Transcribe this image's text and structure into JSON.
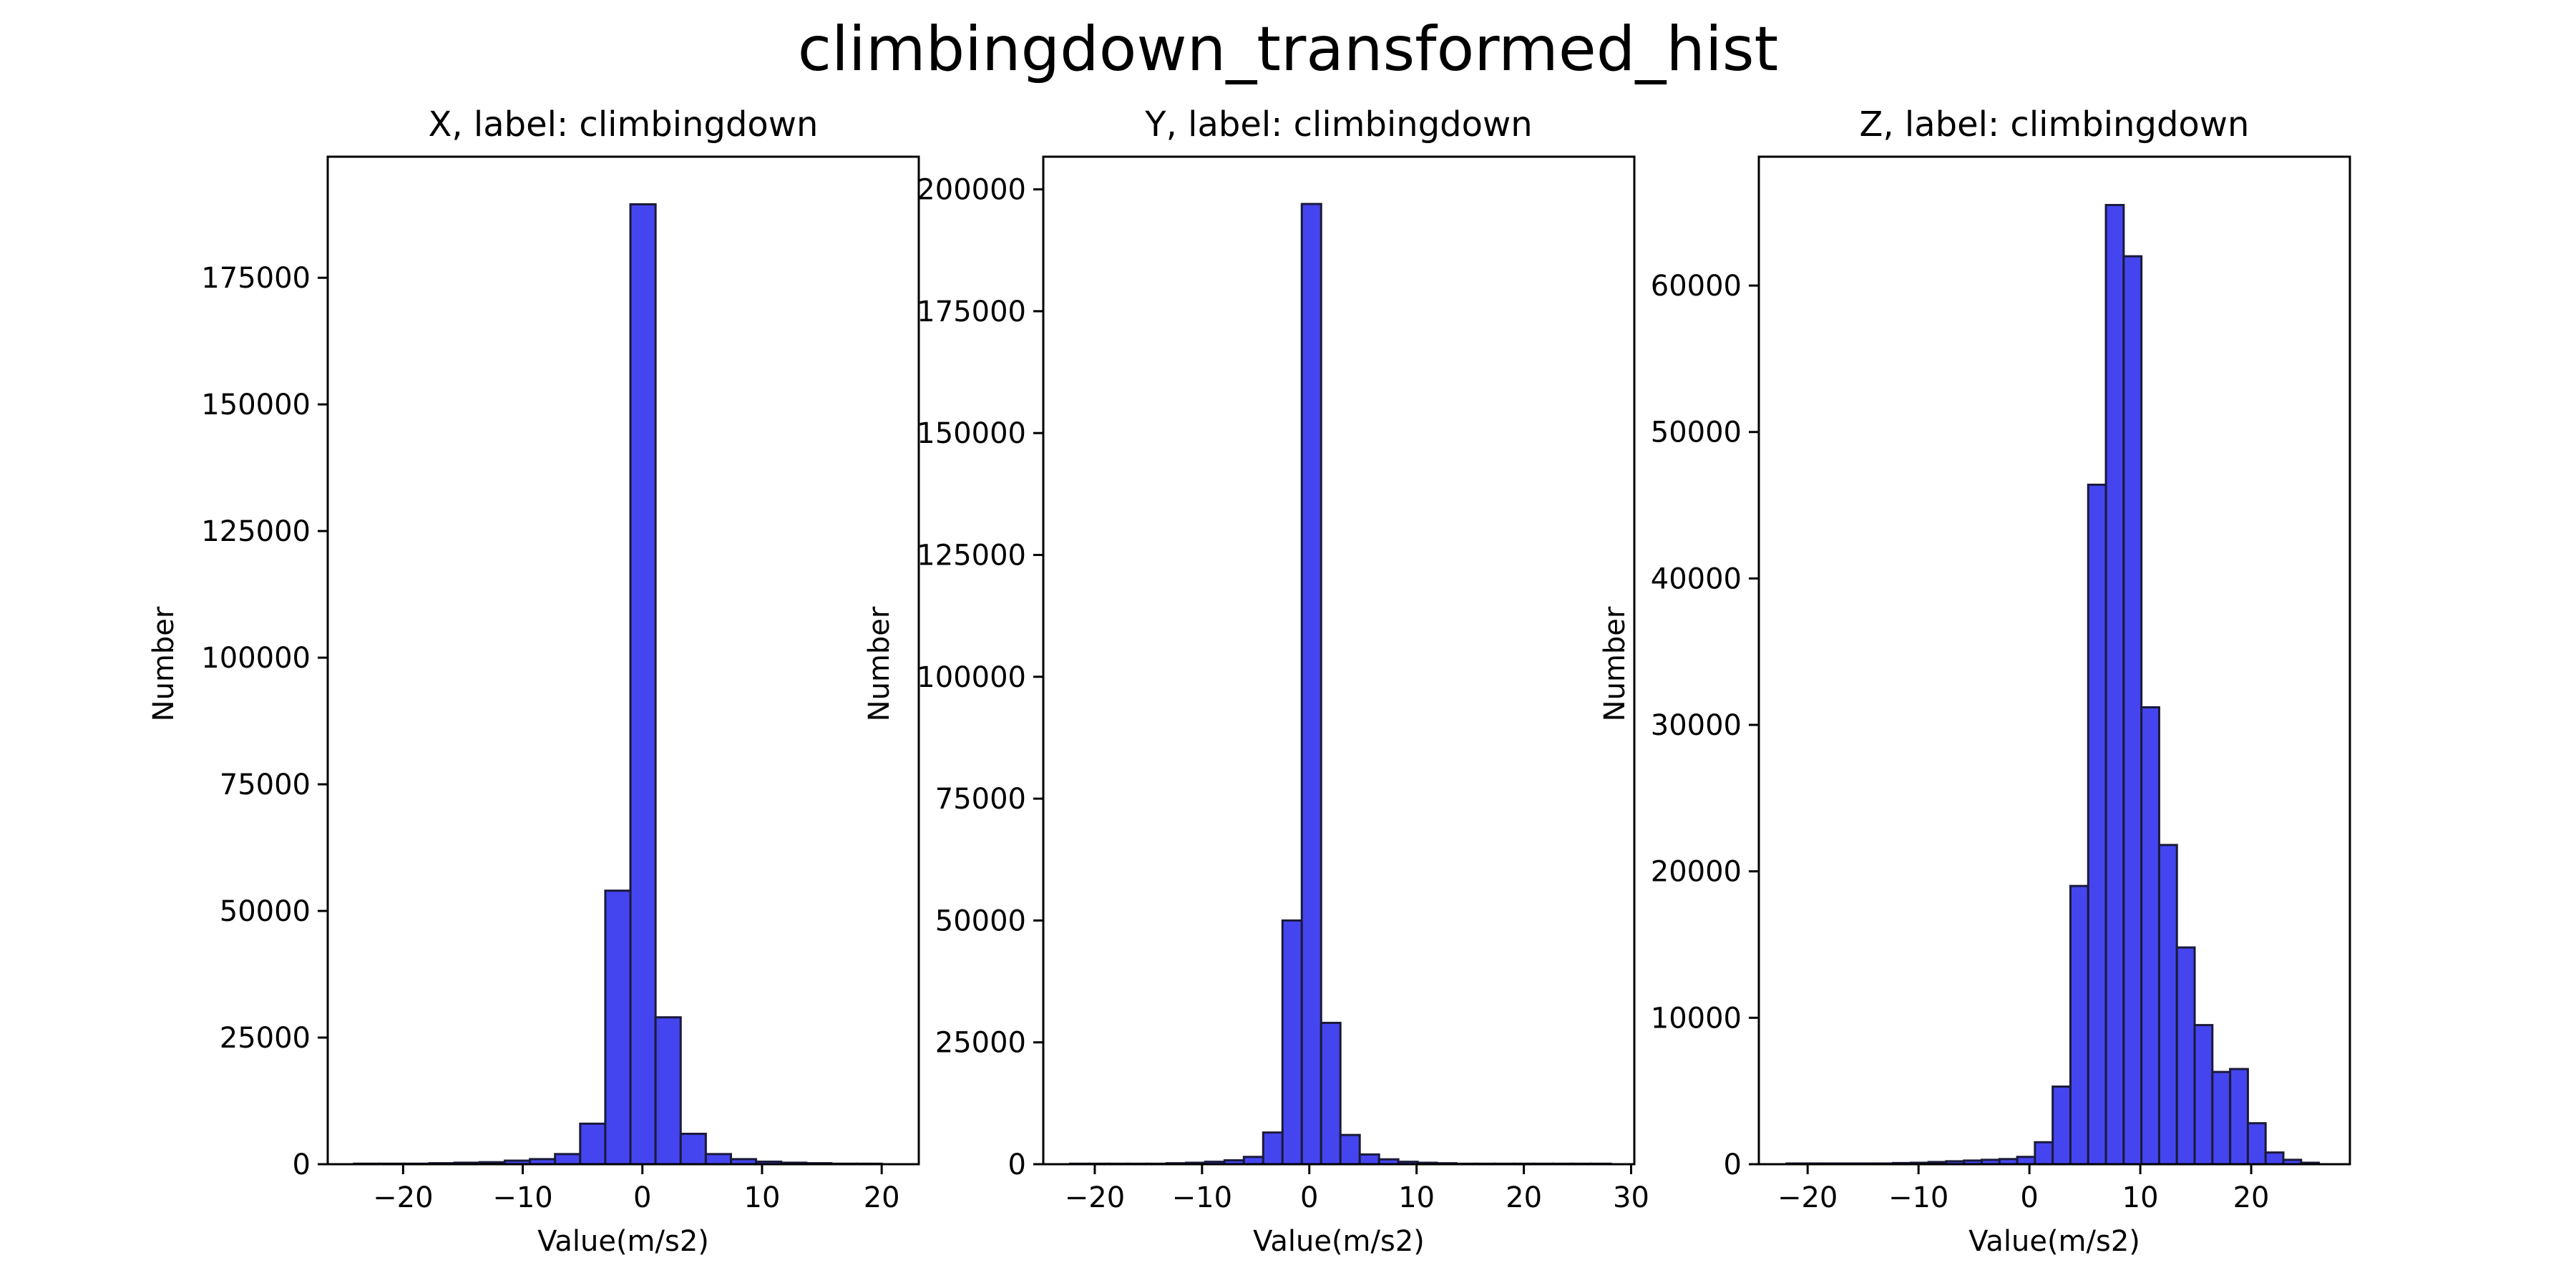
{
  "title": "climbingdown_transformed_hist",
  "chart_data": [
    {
      "type": "bar",
      "title": "X, label: climbingdown",
      "xlabel": "Value(m/s2)",
      "ylabel": "Number",
      "xlim": [
        -26.3,
        23.1
      ],
      "ylim": [
        0,
        198900
      ],
      "xticks": [
        -20,
        -10,
        0,
        10,
        20
      ],
      "yticks": [
        0,
        25000,
        50000,
        75000,
        100000,
        125000,
        150000,
        175000
      ],
      "bin_edges": [
        -24.1,
        -22.0,
        -19.9,
        -17.8,
        -15.7,
        -13.6,
        -11.5,
        -9.4,
        -7.3,
        -5.2,
        -3.1,
        -1.0,
        1.1,
        3.2,
        5.3,
        7.4,
        9.5,
        11.6,
        13.7,
        15.8,
        17.9,
        20.0
      ],
      "values": [
        100,
        100,
        100,
        200,
        300,
        400,
        700,
        1000,
        2000,
        8000,
        54000,
        189500,
        29000,
        6000,
        2000,
        1000,
        500,
        300,
        200,
        100,
        100
      ]
    },
    {
      "type": "bar",
      "title": "Y, label: climbingdown",
      "xlabel": "Value(m/s2)",
      "ylabel": "Number",
      "xlim": [
        -24.8,
        30.3
      ],
      "ylim": [
        0,
        206700
      ],
      "xticks": [
        -20,
        -10,
        0,
        10,
        20,
        30
      ],
      "yticks": [
        0,
        25000,
        50000,
        75000,
        100000,
        125000,
        150000,
        175000,
        200000
      ],
      "bin_edges": [
        -22.3,
        -20.5,
        -18.7,
        -16.9,
        -15.1,
        -13.3,
        -11.5,
        -9.7,
        -7.9,
        -6.1,
        -4.3,
        -2.5,
        -0.7,
        1.1,
        2.9,
        4.7,
        6.5,
        8.3,
        10.1,
        11.9,
        13.7,
        15.5,
        17.3,
        19.1,
        20.9,
        22.7,
        24.5,
        26.3,
        28.1
      ],
      "values": [
        100,
        100,
        100,
        100,
        100,
        200,
        300,
        500,
        800,
        1500,
        6500,
        50000,
        197000,
        29000,
        6000,
        2000,
        1000,
        500,
        300,
        200,
        100,
        100,
        100,
        100,
        100,
        100,
        100,
        100
      ]
    },
    {
      "type": "bar",
      "title": "Z, label: climbingdown",
      "xlabel": "Value(m/s2)",
      "ylabel": "Number",
      "xlim": [
        -24.4,
        28.9
      ],
      "ylim": [
        0,
        68800
      ],
      "xticks": [
        -20,
        -10,
        0,
        10,
        20
      ],
      "yticks": [
        0,
        10000,
        20000,
        30000,
        40000,
        50000,
        60000
      ],
      "bin_edges": [
        -21.9,
        -20.3,
        -18.7,
        -17.1,
        -15.5,
        -13.9,
        -12.3,
        -10.7,
        -9.1,
        -7.5,
        -5.9,
        -4.3,
        -2.7,
        -1.1,
        0.5,
        2.1,
        3.7,
        5.3,
        6.9,
        8.5,
        10.1,
        11.7,
        13.3,
        14.9,
        16.5,
        18.1,
        19.7,
        21.3,
        22.9,
        24.5,
        26.1
      ],
      "values": [
        50,
        50,
        50,
        50,
        50,
        50,
        80,
        100,
        150,
        200,
        250,
        300,
        350,
        500,
        1500,
        5300,
        19000,
        46400,
        65500,
        62000,
        31200,
        21800,
        14800,
        9500,
        6300,
        6500,
        2800,
        800,
        300,
        100
      ]
    }
  ]
}
